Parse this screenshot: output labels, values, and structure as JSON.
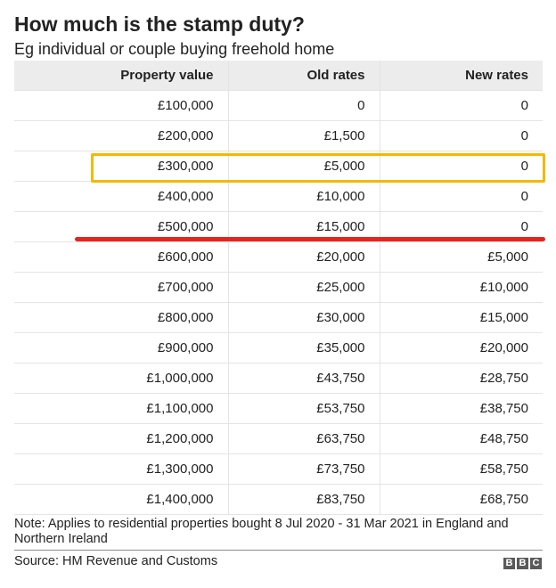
{
  "chart_data": {
    "type": "table",
    "title": "How much is the stamp duty?",
    "subtitle": "Eg individual or couple buying freehold home",
    "columns": [
      "Property value",
      "Old rates",
      "New rates"
    ],
    "rows": [
      [
        "£100,000",
        "0",
        "0"
      ],
      [
        "£200,000",
        "£1,500",
        "0"
      ],
      [
        "£300,000",
        "£5,000",
        "0"
      ],
      [
        "£400,000",
        "£10,000",
        "0"
      ],
      [
        "£500,000",
        "£15,000",
        "0"
      ],
      [
        "£600,000",
        "£20,000",
        "£5,000"
      ],
      [
        "£700,000",
        "£25,000",
        "£10,000"
      ],
      [
        "£800,000",
        "£30,000",
        "£15,000"
      ],
      [
        "£900,000",
        "£35,000",
        "£20,000"
      ],
      [
        "£1,000,000",
        "£43,750",
        "£28,750"
      ],
      [
        "£1,100,000",
        "£53,750",
        "£38,750"
      ],
      [
        "£1,200,000",
        "£63,750",
        "£48,750"
      ],
      [
        "£1,300,000",
        "£73,750",
        "£58,750"
      ],
      [
        "£1,400,000",
        "£83,750",
        "£68,750"
      ]
    ],
    "highlighted_row_index": 2,
    "threshold_after_row_index": 4,
    "note": "Note: Applies to residential properties bought 8 Jul 2020 - 31 Mar 2021 in England and Northern Ireland",
    "source": "Source: HM Revenue and Customs"
  },
  "colors": {
    "highlight_box": "#f5b800",
    "threshold_line": "#e8231f",
    "header_background": "#ececec"
  },
  "logo": {
    "letters": [
      "B",
      "B",
      "C"
    ]
  }
}
